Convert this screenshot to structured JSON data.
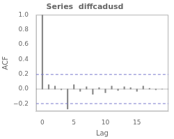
{
  "chart_data": {
    "type": "stem",
    "title": "Series  diffcadusd",
    "x_label": "Lag",
    "y_label": "ACF",
    "x": [
      0,
      1,
      2,
      3,
      4,
      5,
      6,
      7,
      8,
      9,
      10,
      11,
      12,
      13,
      14,
      15,
      16,
      17,
      18,
      19
    ],
    "values": [
      1.0,
      0.06,
      0.04,
      -0.01,
      -0.27,
      0.06,
      -0.03,
      0.03,
      -0.07,
      0.02,
      -0.05,
      0.04,
      -0.02,
      0.03,
      0.02,
      -0.03,
      0.04,
      0.01,
      -0.01,
      0.0
    ],
    "color": "#888888",
    "confidence_interval": {
      "value": 0.196,
      "color": "#7777cc",
      "line_style": "dashed"
    },
    "xlim": [
      -1.0,
      20.0
    ],
    "xticks": [
      0,
      5,
      10,
      15
    ],
    "ylim": [
      -0.3,
      1.0
    ],
    "yticks": [
      {
        "value": -0.2,
        "label": "−0.2"
      },
      {
        "value": 0.0,
        "label": "0.0"
      },
      0.2,
      0.4,
      0.6,
      0.8,
      {
        "value": 1.0,
        "label": "1.0"
      }
    ],
    "grid": false
  }
}
